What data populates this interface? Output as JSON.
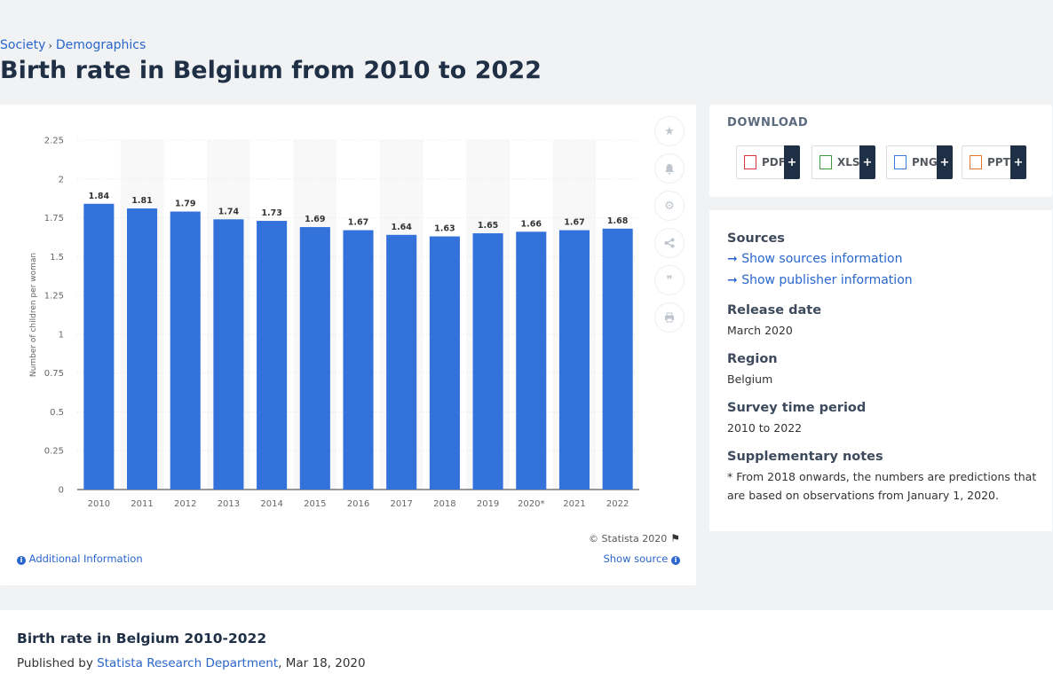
{
  "breadcrumb": {
    "items": [
      "Society",
      "Demographics"
    ]
  },
  "page": {
    "title": "Birth rate in Belgium from 2010 to 2022"
  },
  "chart_data": {
    "type": "bar",
    "title": "Birth rate in Belgium from 2010 to 2022",
    "xlabel": "",
    "ylabel": "Number of children per woman",
    "categories": [
      "2010",
      "2011",
      "2012",
      "2013",
      "2014",
      "2015",
      "2016",
      "2017",
      "2018",
      "2019",
      "2020*",
      "2021",
      "2022"
    ],
    "values": [
      1.84,
      1.81,
      1.79,
      1.74,
      1.73,
      1.69,
      1.67,
      1.64,
      1.63,
      1.65,
      1.66,
      1.67,
      1.68
    ],
    "value_labels": [
      "1.84",
      "1.81",
      "1.79",
      "1.74",
      "1.73",
      "1.69",
      "1.67",
      "1.64",
      "1.63",
      "1.65",
      "1.66",
      "1.67",
      "1.68"
    ],
    "ylim": [
      0,
      2.25
    ],
    "yticks": [
      0,
      0.25,
      0.5,
      0.75,
      1,
      1.25,
      1.5,
      1.75,
      2,
      2.25
    ],
    "ytick_labels": [
      "0",
      "0.25",
      "0.5",
      "0.75",
      "1",
      "1.25",
      "1.5",
      "1.75",
      "2",
      "2.25"
    ],
    "bar_color": "#3371db",
    "grid": true
  },
  "chart_footer": {
    "copyright": "© Statista 2020",
    "additional_info": "Additional Information",
    "show_source": "Show source"
  },
  "download": {
    "title": "DOWNLOAD",
    "buttons": [
      {
        "label": "PDF",
        "color": "#d9363e"
      },
      {
        "label": "XLS",
        "color": "#3c9a3c"
      },
      {
        "label": "PNG",
        "color": "#3a7bd5"
      },
      {
        "label": "PPT",
        "color": "#e8772e"
      }
    ],
    "plus": "+"
  },
  "details": {
    "sources_label": "Sources",
    "show_sources": "Show sources information",
    "show_publisher": "Show publisher information",
    "release_date_label": "Release date",
    "release_date": "March 2020",
    "region_label": "Region",
    "region": "Belgium",
    "survey_period_label": "Survey time period",
    "survey_period": "2010 to 2022",
    "notes_label": "Supplementary notes",
    "notes": "* From 2018 onwards, the numbers are predictions that are based on observations from January 1, 2020."
  },
  "bottom": {
    "title": "Birth rate in Belgium 2010-2022",
    "published_by": "Published by",
    "author": "Statista Research Department",
    "date": ", Mar 18, 2020"
  }
}
